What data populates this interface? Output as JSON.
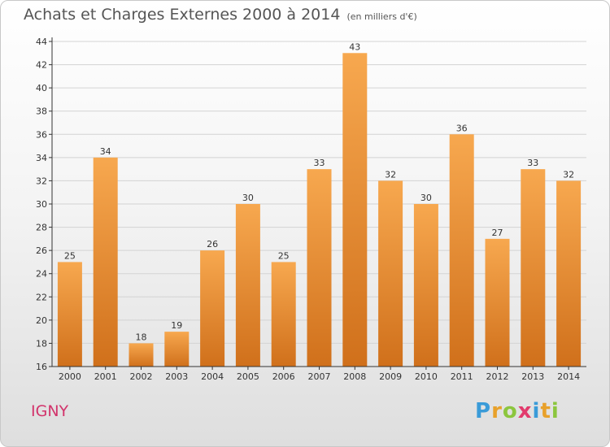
{
  "title": "Achats et Charges Externes 2000 à 2014",
  "unit": "(en milliers d'€)",
  "town": "IGNY",
  "logo": {
    "letters": [
      "P",
      "r",
      "o",
      "x",
      "i",
      "t",
      "i"
    ],
    "colors": [
      "#3a9bd8",
      "#e8a12b",
      "#8cc63e",
      "#e23b6d",
      "#3a9bd8",
      "#e8a12b",
      "#8cc63e"
    ]
  },
  "chart_data": {
    "type": "bar",
    "title": "Achats et Charges Externes 2000 à 2014",
    "subtitle": "(en milliers d'€)",
    "categories": [
      "2000",
      "2001",
      "2002",
      "2003",
      "2004",
      "2005",
      "2006",
      "2007",
      "2008",
      "2009",
      "2010",
      "2011",
      "2012",
      "2013",
      "2014"
    ],
    "values": [
      25,
      34,
      18,
      19,
      26,
      30,
      25,
      33,
      43,
      32,
      30,
      36,
      27,
      33,
      32
    ],
    "ylim": [
      16,
      44
    ],
    "yticks": [
      16,
      18,
      20,
      22,
      24,
      26,
      28,
      30,
      32,
      34,
      36,
      38,
      40,
      42,
      44
    ],
    "grid": true,
    "colors": {
      "bar_top": "#f7a84f",
      "bar_bottom": "#d0701b",
      "grid": "#d3d3d3",
      "axis": "#333333",
      "text": "#333333"
    }
  }
}
